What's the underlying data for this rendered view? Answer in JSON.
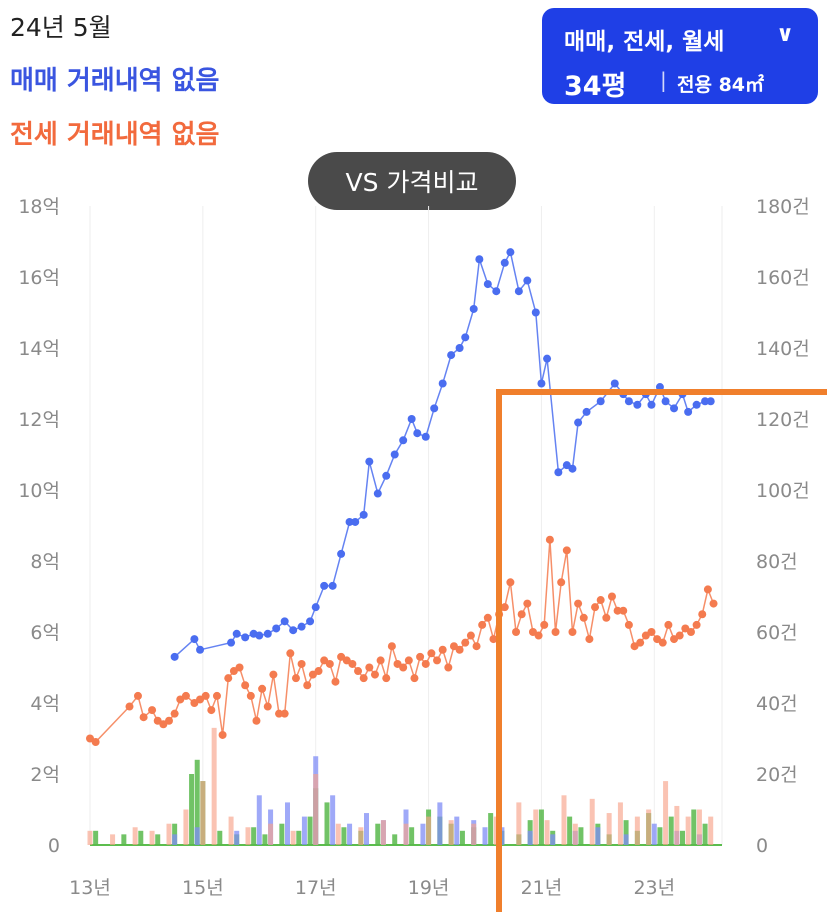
{
  "header": {
    "date": "24년 5월",
    "sale_message": "매매 거래내역 없음",
    "rent_message": "전세 거래내역 없음"
  },
  "filter": {
    "types_label": "매매, 전세, 월세",
    "pyeong": "34평",
    "separator": "|",
    "area": "전용 84㎡"
  },
  "compare_button": "VS 가격비교",
  "colors": {
    "sale": "#4a6df0",
    "rent": "#f47b4f",
    "sale_bar": "#7f8cf5",
    "rent_bar": "#f7a38a",
    "monthly_bar": "#58b84b",
    "crosshair": "#f07f2c"
  },
  "chart_data": {
    "type": "line",
    "x_ticks": [
      {
        "x": 2013,
        "label": "13년"
      },
      {
        "x": 2015,
        "label": "15년"
      },
      {
        "x": 2017,
        "label": "17년"
      },
      {
        "x": 2019,
        "label": "19년"
      },
      {
        "x": 2021,
        "label": "21년"
      },
      {
        "x": 2023,
        "label": "23년"
      }
    ],
    "xlim": [
      2013,
      2024.2
    ],
    "left_axis": {
      "ylim": [
        0,
        18
      ],
      "ticks": [
        {
          "v": 0,
          "label": "0"
        },
        {
          "v": 2,
          "label": "2억"
        },
        {
          "v": 4,
          "label": "4억"
        },
        {
          "v": 6,
          "label": "6억"
        },
        {
          "v": 8,
          "label": "8억"
        },
        {
          "v": 10,
          "label": "10억"
        },
        {
          "v": 12,
          "label": "12억"
        },
        {
          "v": 14,
          "label": "14억"
        },
        {
          "v": 16,
          "label": "16억"
        },
        {
          "v": 18,
          "label": "18억"
        }
      ]
    },
    "right_axis": {
      "ylim": [
        0,
        180
      ],
      "ticks": [
        {
          "v": 0,
          "label": "0"
        },
        {
          "v": 20,
          "label": "20건"
        },
        {
          "v": 40,
          "label": "40건"
        },
        {
          "v": 60,
          "label": "60건"
        },
        {
          "v": 80,
          "label": "80건"
        },
        {
          "v": 100,
          "label": "100건"
        },
        {
          "v": 120,
          "label": "120건"
        },
        {
          "v": 140,
          "label": "140건"
        },
        {
          "v": 160,
          "label": "160건"
        },
        {
          "v": 180,
          "label": "180건"
        }
      ]
    },
    "grid": "vertical",
    "series": [
      {
        "key": "sale",
        "x": [
          2014.5,
          2014.85,
          2014.95,
          2015.5,
          2015.6,
          2015.75,
          2015.9,
          2016.0,
          2016.15,
          2016.3,
          2016.45,
          2016.6,
          2016.75,
          2016.9,
          2017.0,
          2017.15,
          2017.3,
          2017.45,
          2017.6,
          2017.7,
          2017.85,
          2017.95,
          2018.1,
          2018.25,
          2018.4,
          2018.55,
          2018.7,
          2018.8,
          2018.95,
          2019.1,
          2019.25,
          2019.4,
          2019.55,
          2019.65,
          2019.8,
          2019.9,
          2020.05,
          2020.2,
          2020.35,
          2020.45,
          2020.6,
          2020.75,
          2020.9,
          2021.0,
          2021.1,
          2021.3,
          2021.45,
          2021.55,
          2021.65,
          2021.8,
          2022.05,
          2022.3,
          2022.45,
          2022.55,
          2022.7,
          2022.85,
          2022.95,
          2023.1,
          2023.2,
          2023.35,
          2023.5,
          2023.6,
          2023.75,
          2023.9,
          2024.0
        ],
        "y": [
          5.3,
          5.8,
          5.5,
          5.7,
          5.95,
          5.85,
          5.95,
          5.9,
          5.95,
          6.1,
          6.3,
          6.05,
          6.15,
          6.3,
          6.7,
          7.3,
          7.3,
          8.2,
          9.1,
          9.1,
          9.3,
          10.8,
          9.9,
          10.4,
          11.0,
          11.4,
          12.0,
          11.6,
          11.5,
          12.3,
          13.0,
          13.8,
          14.0,
          14.3,
          15.1,
          16.5,
          15.8,
          15.6,
          16.4,
          16.7,
          15.6,
          15.9,
          15.0,
          13.0,
          13.7,
          10.5,
          10.7,
          10.6,
          11.9,
          12.2,
          12.5,
          13.0,
          12.7,
          12.5,
          12.4,
          12.7,
          12.4,
          12.9,
          12.5,
          12.3,
          12.7,
          12.2,
          12.4,
          12.5,
          12.5
        ]
      },
      {
        "key": "rent",
        "x": [
          2013.0,
          2013.1,
          2013.7,
          2013.85,
          2013.95,
          2014.1,
          2014.2,
          2014.3,
          2014.4,
          2014.5,
          2014.6,
          2014.7,
          2014.85,
          2014.95,
          2015.05,
          2015.15,
          2015.25,
          2015.35,
          2015.45,
          2015.55,
          2015.65,
          2015.75,
          2015.85,
          2015.95,
          2016.05,
          2016.15,
          2016.25,
          2016.35,
          2016.45,
          2016.55,
          2016.65,
          2016.75,
          2016.85,
          2016.95,
          2017.05,
          2017.15,
          2017.25,
          2017.35,
          2017.45,
          2017.55,
          2017.65,
          2017.75,
          2017.85,
          2017.95,
          2018.05,
          2018.15,
          2018.25,
          2018.35,
          2018.45,
          2018.55,
          2018.65,
          2018.75,
          2018.85,
          2018.95,
          2019.05,
          2019.15,
          2019.25,
          2019.35,
          2019.45,
          2019.55,
          2019.65,
          2019.75,
          2019.85,
          2019.95,
          2020.05,
          2020.15,
          2020.25,
          2020.35,
          2020.45,
          2020.55,
          2020.65,
          2020.75,
          2020.85,
          2020.95,
          2021.05,
          2021.15,
          2021.25,
          2021.35,
          2021.45,
          2021.55,
          2021.65,
          2021.75,
          2021.85,
          2021.95,
          2022.05,
          2022.15,
          2022.25,
          2022.35,
          2022.45,
          2022.55,
          2022.65,
          2022.75,
          2022.85,
          2022.95,
          2023.05,
          2023.15,
          2023.25,
          2023.35,
          2023.45,
          2023.55,
          2023.65,
          2023.75,
          2023.85,
          2023.95,
          2024.05
        ],
        "y": [
          3.0,
          2.9,
          3.9,
          4.2,
          3.6,
          3.8,
          3.5,
          3.4,
          3.5,
          3.7,
          4.1,
          4.2,
          4.0,
          4.1,
          4.2,
          3.8,
          4.2,
          3.1,
          4.7,
          4.9,
          5.0,
          4.5,
          4.2,
          3.5,
          4.4,
          3.9,
          4.8,
          3.7,
          3.7,
          5.4,
          4.7,
          5.1,
          4.5,
          4.8,
          4.9,
          5.2,
          5.1,
          4.6,
          5.3,
          5.2,
          5.1,
          4.9,
          4.7,
          5.0,
          4.8,
          5.2,
          4.7,
          5.6,
          5.1,
          5.0,
          5.2,
          4.7,
          5.3,
          5.1,
          5.4,
          5.2,
          5.5,
          5.0,
          5.6,
          5.5,
          5.7,
          5.9,
          5.6,
          6.2,
          6.4,
          5.8,
          6.5,
          6.7,
          7.4,
          6.0,
          6.5,
          6.8,
          6.0,
          5.9,
          6.2,
          8.6,
          6.0,
          7.4,
          8.3,
          6.0,
          6.8,
          6.4,
          5.8,
          6.7,
          6.9,
          6.4,
          7.0,
          6.6,
          6.6,
          6.2,
          5.6,
          5.7,
          5.9,
          6.0,
          5.8,
          5.7,
          6.2,
          5.8,
          5.9,
          6.1,
          6.0,
          6.2,
          6.5,
          7.2,
          6.8
        ]
      }
    ],
    "volume_bars": [
      {
        "key": "monthly",
        "x": [
          2013.1,
          2013.6,
          2013.9,
          2014.2,
          2014.5,
          2014.8,
          2014.9,
          2015.0,
          2015.3,
          2015.6,
          2015.9,
          2016.1,
          2016.4,
          2016.7,
          2016.9,
          2017.0,
          2017.2,
          2017.5,
          2017.8,
          2018.1,
          2018.4,
          2018.7,
          2019.0,
          2019.2,
          2019.4,
          2019.6,
          2019.8,
          2020.1,
          2020.3,
          2020.6,
          2020.8,
          2021.0,
          2021.2,
          2021.5,
          2021.7,
          2022.0,
          2022.2,
          2022.5,
          2022.7,
          2022.9,
          2023.1,
          2023.3,
          2023.5,
          2023.7,
          2023.9
        ],
        "values": [
          4,
          3,
          4,
          3,
          6,
          20,
          24,
          18,
          4,
          3,
          5,
          3,
          6,
          4,
          8,
          16,
          12,
          5,
          4,
          6,
          3,
          5,
          10,
          8,
          6,
          4,
          5,
          9,
          4,
          3,
          7,
          10,
          4,
          8,
          5,
          6,
          3,
          7,
          4,
          9,
          5,
          8,
          4,
          10,
          6
        ]
      },
      {
        "key": "sale_volume",
        "x": [
          2014.5,
          2014.9,
          2015.6,
          2016.0,
          2016.2,
          2016.5,
          2016.8,
          2017.0,
          2017.3,
          2017.6,
          2017.9,
          2018.2,
          2018.6,
          2018.9,
          2019.2,
          2019.5,
          2019.8,
          2020.0,
          2020.3,
          2020.8,
          2021.2,
          2021.6,
          2022.0,
          2022.5,
          2023.0,
          2023.4,
          2023.8
        ],
        "values": [
          3,
          5,
          4,
          14,
          10,
          12,
          8,
          25,
          14,
          6,
          9,
          7,
          10,
          6,
          12,
          8,
          7,
          5,
          5,
          4,
          3,
          4,
          5,
          3,
          6,
          4,
          3
        ]
      },
      {
        "key": "rent_volume",
        "x": [
          2013.0,
          2013.4,
          2013.8,
          2014.1,
          2014.4,
          2014.7,
          2015.0,
          2015.2,
          2015.5,
          2015.8,
          2016.2,
          2016.6,
          2017.0,
          2017.4,
          2017.8,
          2018.2,
          2018.6,
          2019.0,
          2019.4,
          2019.8,
          2020.2,
          2020.6,
          2020.9,
          2021.1,
          2021.4,
          2021.6,
          2021.9,
          2022.2,
          2022.4,
          2022.7,
          2022.9,
          2023.2,
          2023.4,
          2023.6,
          2023.8,
          2024.0
        ],
        "values": [
          4,
          3,
          5,
          4,
          6,
          10,
          18,
          33,
          8,
          5,
          6,
          4,
          20,
          6,
          5,
          7,
          6,
          8,
          7,
          6,
          8,
          12,
          10,
          7,
          14,
          6,
          13,
          9,
          12,
          8,
          10,
          18,
          11,
          8,
          10,
          8
        ]
      }
    ]
  }
}
